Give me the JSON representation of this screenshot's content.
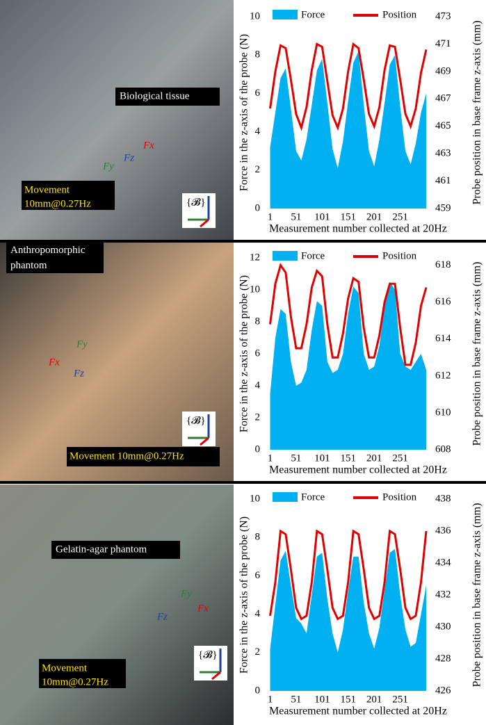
{
  "chart_data": [
    {
      "type": "combo",
      "xlabel": "Measurement number collected at 20Hz",
      "ylabel": "Force in the z-axis of the probe (N)",
      "y2label": "Probe position in base frame z-axis (mm)",
      "x": [
        1,
        11,
        21,
        31,
        41,
        51,
        61,
        71,
        81,
        91,
        101,
        111,
        121,
        131,
        141,
        151,
        161,
        171,
        181,
        191,
        201,
        211,
        221,
        231,
        241,
        251,
        261,
        271,
        281,
        291,
        301
      ],
      "xlim": [
        -5,
        305
      ],
      "xticks": [
        1,
        51,
        101,
        151,
        201,
        251
      ],
      "ylim": [
        0,
        10
      ],
      "yticks": [
        0,
        2,
        4,
        6,
        8,
        10
      ],
      "y2lim": [
        459,
        473
      ],
      "y2ticks": [
        459,
        461,
        463,
        465,
        467,
        469,
        471,
        473
      ],
      "series": [
        {
          "name": "Force",
          "color": "#00b0f0",
          "values": [
            3.2,
            5.0,
            6.8,
            7.3,
            5.2,
            3.0,
            2.5,
            3.6,
            5.4,
            7.2,
            7.8,
            5.5,
            3.1,
            2.1,
            3.5,
            5.6,
            7.6,
            8.2,
            5.4,
            3.0,
            2.2,
            3.6,
            5.5,
            7.5,
            8.0,
            5.3,
            3.0,
            2.3,
            3.4,
            5.0,
            6.0
          ]
        },
        {
          "name": "Position",
          "color": "#e00000",
          "axis": "y2",
          "values": [
            466.3,
            469.0,
            470.9,
            470.7,
            468.4,
            465.9,
            464.9,
            466.4,
            469.1,
            471.0,
            470.8,
            468.3,
            465.8,
            464.9,
            466.3,
            469.0,
            471.0,
            470.7,
            468.4,
            465.9,
            465.0,
            466.4,
            469.1,
            470.9,
            470.8,
            468.4,
            465.9,
            465.0,
            466.3,
            468.9,
            470.6
          ]
        }
      ]
    },
    {
      "type": "combo",
      "xlabel": "Measurement number collected at 20Hz",
      "ylabel": "Force in the z-axis of the probe (N)",
      "y2label": "Probe position in base frame z-axis (mm)",
      "x": [
        1,
        11,
        21,
        31,
        41,
        51,
        61,
        71,
        81,
        91,
        101,
        111,
        121,
        131,
        141,
        151,
        161,
        171,
        181,
        191,
        201,
        211,
        221,
        231,
        241,
        251,
        261,
        271,
        281,
        291,
        301
      ],
      "xlim": [
        -5,
        305
      ],
      "xticks": [
        1,
        51,
        101,
        151,
        201,
        251
      ],
      "ylim": [
        0,
        12
      ],
      "yticks": [
        0,
        2,
        4,
        6,
        8,
        10,
        12
      ],
      "y2lim": [
        608,
        618.4
      ],
      "y2ticks": [
        608,
        610,
        612,
        614,
        616,
        618
      ],
      "series": [
        {
          "name": "Force",
          "color": "#00b0f0",
          "values": [
            3.5,
            7.0,
            8.8,
            8.5,
            5.5,
            4.0,
            4.2,
            5.0,
            7.5,
            9.3,
            9.0,
            5.5,
            4.8,
            5.0,
            6.0,
            8.5,
            10.2,
            9.8,
            6.0,
            5.0,
            5.2,
            6.5,
            9.0,
            10.5,
            10.0,
            6.0,
            5.2,
            5.0,
            5.5,
            6.0,
            5.0
          ]
        },
        {
          "name": "Position",
          "color": "#e00000",
          "axis": "y2",
          "values": [
            614.8,
            617.0,
            618.0,
            617.6,
            615.2,
            613.5,
            613.5,
            614.8,
            616.8,
            617.7,
            617.4,
            614.8,
            613.0,
            613.0,
            614.3,
            616.2,
            617.3,
            617.1,
            614.6,
            613.0,
            613.0,
            614.2,
            616.0,
            617.0,
            617.0,
            614.6,
            612.6,
            612.6,
            613.8,
            615.8,
            616.8
          ]
        }
      ]
    },
    {
      "type": "combo",
      "xlabel": "Measurement number collected at 20Hz",
      "ylabel": "Force in the z-axis of the probe (N)",
      "y2label": "Probe position in base frame z-axis (mm)",
      "x": [
        1,
        11,
        21,
        31,
        41,
        51,
        61,
        71,
        81,
        91,
        101,
        111,
        121,
        131,
        141,
        151,
        161,
        171,
        181,
        191,
        201,
        211,
        221,
        231,
        241,
        251,
        261,
        271,
        281,
        291,
        301
      ],
      "xlim": [
        -5,
        305
      ],
      "xticks": [
        1,
        51,
        101,
        151,
        201,
        251
      ],
      "ylim": [
        0,
        10
      ],
      "yticks": [
        0,
        2,
        4,
        6,
        8,
        10
      ],
      "y2lim": [
        426,
        438
      ],
      "y2ticks": [
        426,
        428,
        430,
        432,
        434,
        436,
        438
      ],
      "series": [
        {
          "name": "Force",
          "color": "#00b0f0",
          "values": [
            2.2,
            4.5,
            6.8,
            7.3,
            5.5,
            3.8,
            3.5,
            3.0,
            5.0,
            7.0,
            7.2,
            4.8,
            3.0,
            2.0,
            3.2,
            5.2,
            7.0,
            7.0,
            4.6,
            3.0,
            2.2,
            3.3,
            5.3,
            7.2,
            7.4,
            5.0,
            3.2,
            2.3,
            2.5,
            4.0,
            5.5
          ]
        },
        {
          "name": "Position",
          "color": "#e00000",
          "axis": "y2",
          "values": [
            430.7,
            432.8,
            436.0,
            435.8,
            433.6,
            431.2,
            430.5,
            430.7,
            432.8,
            436.0,
            435.8,
            433.6,
            431.2,
            430.5,
            430.7,
            432.8,
            436.0,
            435.8,
            433.6,
            431.2,
            430.5,
            430.7,
            432.8,
            436.0,
            435.8,
            433.6,
            431.2,
            430.5,
            430.7,
            432.8,
            436.0
          ]
        }
      ]
    }
  ],
  "photos": [
    {
      "annotation": "Biological tissue",
      "movement": [
        "Movement",
        "10mm@0.27Hz"
      ],
      "frame": "{𝓑}",
      "forces": [
        "Fx",
        "Fz",
        "Fy"
      ]
    },
    {
      "annotation": "Anthropomorphic phantom",
      "movement": [
        "Movement 10mm@0.27Hz"
      ],
      "frame": "{𝓑}",
      "forces": [
        "Fx",
        "Fz",
        "Fy"
      ]
    },
    {
      "annotation": "Gelatin-agar phantom",
      "movement": [
        "Movement",
        "10mm@0.27Hz"
      ],
      "frame": "{𝓑}",
      "forces": [
        "Fx",
        "Fz",
        "Fy"
      ]
    }
  ]
}
